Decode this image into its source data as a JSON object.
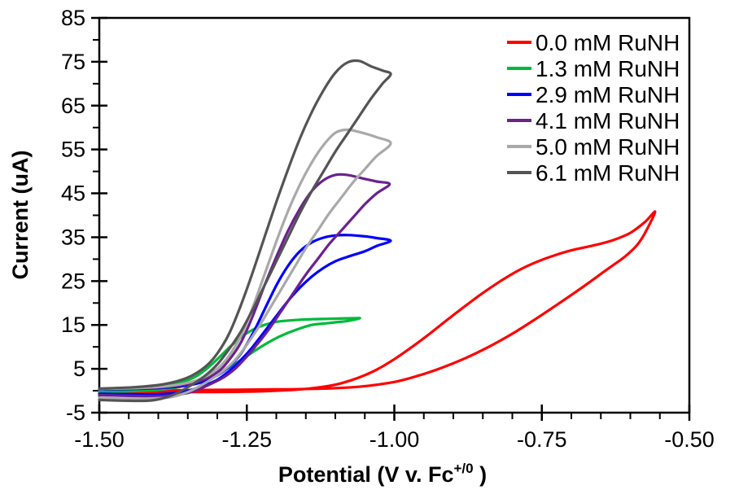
{
  "figure": {
    "background": "#FFFFFF",
    "axis_color": "#000000",
    "text_color": "#000000"
  },
  "chart_data": {
    "type": "line",
    "chart_kind": "cyclic-voltammogram",
    "title": "",
    "xlabel": {
      "main": "Potential (V v. Fc",
      "sup": "+/0",
      "end": " )"
    },
    "ylabel": "Current (uA)",
    "x_axis": {
      "min": -1.5,
      "max": -0.5,
      "minor_step": 0.05,
      "major_ticks": [
        {
          "value": -1.5,
          "label": "-1.50"
        },
        {
          "value": -1.25,
          "label": "-1.25"
        },
        {
          "value": -1.0,
          "label": "-1.00"
        },
        {
          "value": -0.75,
          "label": "-0.75"
        },
        {
          "value": -0.5,
          "label": "-0.50"
        }
      ]
    },
    "y_axis": {
      "min": -5,
      "max": 85,
      "minor_step": 5,
      "major_ticks": [
        {
          "value": 85,
          "label": "85"
        },
        {
          "value": 75,
          "label": "75"
        },
        {
          "value": 65,
          "label": "65"
        },
        {
          "value": 55,
          "label": "55"
        },
        {
          "value": 45,
          "label": "45"
        },
        {
          "value": 35,
          "label": "35"
        },
        {
          "value": 25,
          "label": "25"
        },
        {
          "value": 15,
          "label": "15"
        },
        {
          "value": 5,
          "label": "5"
        },
        {
          "value": -5,
          "label": "-5"
        }
      ]
    },
    "legend": {
      "position": "top-right-inside",
      "swatch": "line"
    },
    "grid": false,
    "series": [
      {
        "name": "0.0 mM RuNH",
        "color": "#FF0000",
        "forward": [
          [
            -1.5,
            0.1
          ],
          [
            -1.4,
            0.1
          ],
          [
            -1.3,
            0.2
          ],
          [
            -1.2,
            0.3
          ],
          [
            -1.12,
            0.5
          ],
          [
            -1.06,
            0.9
          ],
          [
            -1.0,
            2.0
          ],
          [
            -0.96,
            3.4
          ],
          [
            -0.92,
            5.2
          ],
          [
            -0.88,
            7.4
          ],
          [
            -0.84,
            10.0
          ],
          [
            -0.8,
            13.0
          ],
          [
            -0.76,
            16.4
          ],
          [
            -0.72,
            20.0
          ],
          [
            -0.68,
            23.7
          ],
          [
            -0.64,
            27.6
          ],
          [
            -0.61,
            30.5
          ],
          [
            -0.59,
            33.0
          ],
          [
            -0.575,
            36.0
          ],
          [
            -0.558,
            40.8
          ]
        ],
        "reverse": [
          [
            -0.558,
            40.8
          ],
          [
            -0.575,
            38.5
          ],
          [
            -0.6,
            36.0
          ],
          [
            -0.63,
            34.3
          ],
          [
            -0.66,
            33.2
          ],
          [
            -0.7,
            32.0
          ],
          [
            -0.73,
            30.8
          ],
          [
            -0.76,
            29.3
          ],
          [
            -0.79,
            27.4
          ],
          [
            -0.82,
            25.0
          ],
          [
            -0.85,
            22.3
          ],
          [
            -0.88,
            19.3
          ],
          [
            -0.91,
            16.2
          ],
          [
            -0.94,
            13.0
          ],
          [
            -0.97,
            10.0
          ],
          [
            -1.0,
            7.2
          ],
          [
            -1.03,
            4.8
          ],
          [
            -1.06,
            3.0
          ],
          [
            -1.09,
            1.7
          ],
          [
            -1.12,
            0.9
          ],
          [
            -1.16,
            0.3
          ],
          [
            -1.22,
            -0.1
          ],
          [
            -1.3,
            -0.3
          ],
          [
            -1.4,
            -0.3
          ],
          [
            -1.5,
            -0.3
          ]
        ]
      },
      {
        "name": "1.3 mM RuNH",
        "color": "#00B93C",
        "forward": [
          [
            -1.5,
            0.3
          ],
          [
            -1.44,
            0.5
          ],
          [
            -1.4,
            0.9
          ],
          [
            -1.37,
            1.6
          ],
          [
            -1.34,
            3.0
          ],
          [
            -1.32,
            4.8
          ],
          [
            -1.3,
            7.2
          ],
          [
            -1.28,
            9.8
          ],
          [
            -1.26,
            12.2
          ],
          [
            -1.24,
            13.9
          ],
          [
            -1.22,
            15.0
          ],
          [
            -1.2,
            15.7
          ],
          [
            -1.17,
            16.1
          ],
          [
            -1.14,
            16.3
          ],
          [
            -1.11,
            16.4
          ],
          [
            -1.08,
            16.5
          ],
          [
            -1.058,
            16.5
          ]
        ],
        "reverse": [
          [
            -1.058,
            16.5
          ],
          [
            -1.08,
            15.9
          ],
          [
            -1.1,
            15.6
          ],
          [
            -1.12,
            15.3
          ],
          [
            -1.14,
            15.0
          ],
          [
            -1.16,
            14.2
          ],
          [
            -1.18,
            13.2
          ],
          [
            -1.2,
            12.0
          ],
          [
            -1.22,
            10.5
          ],
          [
            -1.24,
            8.8
          ],
          [
            -1.26,
            7.0
          ],
          [
            -1.28,
            5.3
          ],
          [
            -1.3,
            3.8
          ],
          [
            -1.33,
            2.2
          ],
          [
            -1.36,
            1.0
          ],
          [
            -1.4,
            0.2
          ],
          [
            -1.45,
            -0.1
          ],
          [
            -1.5,
            -0.2
          ]
        ]
      },
      {
        "name": "2.9 mM RuNH",
        "color": "#0000FF",
        "forward": [
          [
            -1.5,
            0.3
          ],
          [
            -1.42,
            0.5
          ],
          [
            -1.37,
            0.9
          ],
          [
            -1.33,
            1.8
          ],
          [
            -1.3,
            3.5
          ],
          [
            -1.28,
            5.5
          ],
          [
            -1.26,
            8.5
          ],
          [
            -1.24,
            13.0
          ],
          [
            -1.22,
            18.5
          ],
          [
            -1.2,
            24.0
          ],
          [
            -1.18,
            28.5
          ],
          [
            -1.16,
            31.8
          ],
          [
            -1.14,
            33.8
          ],
          [
            -1.12,
            34.9
          ],
          [
            -1.1,
            35.4
          ],
          [
            -1.08,
            35.5
          ],
          [
            -1.05,
            35.2
          ],
          [
            -1.03,
            34.8
          ],
          [
            -1.006,
            34.2
          ]
        ],
        "reverse": [
          [
            -1.006,
            34.2
          ],
          [
            -1.03,
            33.0
          ],
          [
            -1.05,
            31.8
          ],
          [
            -1.08,
            30.5
          ],
          [
            -1.1,
            29.5
          ],
          [
            -1.12,
            28.0
          ],
          [
            -1.14,
            26.0
          ],
          [
            -1.16,
            23.5
          ],
          [
            -1.18,
            20.5
          ],
          [
            -1.2,
            17.0
          ],
          [
            -1.22,
            13.5
          ],
          [
            -1.24,
            10.0
          ],
          [
            -1.26,
            7.0
          ],
          [
            -1.28,
            4.5
          ],
          [
            -1.3,
            2.5
          ],
          [
            -1.33,
            0.8
          ],
          [
            -1.36,
            -0.3
          ],
          [
            -1.4,
            -0.8
          ],
          [
            -1.45,
            -0.8
          ],
          [
            -1.5,
            -0.7
          ]
        ]
      },
      {
        "name": "4.1 mM RuNH",
        "color": "#6B2190",
        "forward": [
          [
            -1.5,
            0.4
          ],
          [
            -1.42,
            0.6
          ],
          [
            -1.37,
            1.1
          ],
          [
            -1.33,
            2.2
          ],
          [
            -1.3,
            4.2
          ],
          [
            -1.28,
            7.0
          ],
          [
            -1.26,
            11.0
          ],
          [
            -1.24,
            17.0
          ],
          [
            -1.22,
            24.0
          ],
          [
            -1.2,
            30.5
          ],
          [
            -1.18,
            36.5
          ],
          [
            -1.16,
            41.5
          ],
          [
            -1.14,
            45.5
          ],
          [
            -1.12,
            48.0
          ],
          [
            -1.1,
            49.2
          ],
          [
            -1.08,
            49.2
          ],
          [
            -1.05,
            48.3
          ],
          [
            -1.03,
            47.7
          ],
          [
            -1.008,
            47.1
          ]
        ],
        "reverse": [
          [
            -1.008,
            47.1
          ],
          [
            -1.03,
            45.0
          ],
          [
            -1.05,
            42.5
          ],
          [
            -1.07,
            39.5
          ],
          [
            -1.09,
            36.5
          ],
          [
            -1.11,
            33.5
          ],
          [
            -1.13,
            30.0
          ],
          [
            -1.15,
            26.5
          ],
          [
            -1.17,
            22.5
          ],
          [
            -1.19,
            18.5
          ],
          [
            -1.21,
            14.5
          ],
          [
            -1.23,
            11.0
          ],
          [
            -1.25,
            7.8
          ],
          [
            -1.27,
            5.0
          ],
          [
            -1.29,
            3.0
          ],
          [
            -1.32,
            1.0
          ],
          [
            -1.35,
            -0.5
          ],
          [
            -1.39,
            -1.2
          ],
          [
            -1.44,
            -1.2
          ],
          [
            -1.5,
            -1.0
          ]
        ]
      },
      {
        "name": "5.0 mM RuNH",
        "color": "#A9A9A9",
        "forward": [
          [
            -1.5,
            0.4
          ],
          [
            -1.42,
            0.7
          ],
          [
            -1.37,
            1.3
          ],
          [
            -1.33,
            2.6
          ],
          [
            -1.3,
            5.0
          ],
          [
            -1.28,
            8.0
          ],
          [
            -1.26,
            12.5
          ],
          [
            -1.24,
            19.0
          ],
          [
            -1.22,
            26.5
          ],
          [
            -1.2,
            34.0
          ],
          [
            -1.18,
            41.0
          ],
          [
            -1.16,
            47.0
          ],
          [
            -1.14,
            52.0
          ],
          [
            -1.12,
            56.0
          ],
          [
            -1.1,
            58.8
          ],
          [
            -1.08,
            59.5
          ],
          [
            -1.06,
            59.0
          ],
          [
            -1.03,
            57.8
          ],
          [
            -1.006,
            56.4
          ]
        ],
        "reverse": [
          [
            -1.006,
            56.4
          ],
          [
            -1.03,
            53.5
          ],
          [
            -1.05,
            50.5
          ],
          [
            -1.07,
            47.5
          ],
          [
            -1.09,
            44.0
          ],
          [
            -1.11,
            40.5
          ],
          [
            -1.13,
            36.5
          ],
          [
            -1.15,
            32.5
          ],
          [
            -1.17,
            28.0
          ],
          [
            -1.19,
            23.5
          ],
          [
            -1.21,
            19.0
          ],
          [
            -1.23,
            14.5
          ],
          [
            -1.25,
            10.5
          ],
          [
            -1.27,
            7.0
          ],
          [
            -1.29,
            4.5
          ],
          [
            -1.32,
            1.8
          ],
          [
            -1.35,
            -0.3
          ],
          [
            -1.38,
            -1.5
          ],
          [
            -1.42,
            -1.8
          ],
          [
            -1.46,
            -1.8
          ],
          [
            -1.5,
            -1.6
          ]
        ]
      },
      {
        "name": "6.1 mM RuNH",
        "color": "#545454",
        "forward": [
          [
            -1.5,
            0.5
          ],
          [
            -1.44,
            0.8
          ],
          [
            -1.39,
            1.5
          ],
          [
            -1.35,
            3.0
          ],
          [
            -1.32,
            5.5
          ],
          [
            -1.3,
            8.5
          ],
          [
            -1.28,
            13.0
          ],
          [
            -1.26,
            19.5
          ],
          [
            -1.24,
            27.0
          ],
          [
            -1.22,
            35.0
          ],
          [
            -1.2,
            43.0
          ],
          [
            -1.18,
            50.5
          ],
          [
            -1.16,
            57.5
          ],
          [
            -1.14,
            63.5
          ],
          [
            -1.12,
            68.5
          ],
          [
            -1.1,
            72.5
          ],
          [
            -1.08,
            74.8
          ],
          [
            -1.06,
            75.2
          ],
          [
            -1.04,
            74.0
          ],
          [
            -1.02,
            73.0
          ],
          [
            -1.006,
            72.2
          ]
        ],
        "reverse": [
          [
            -1.006,
            72.2
          ],
          [
            -1.02,
            70.0
          ],
          [
            -1.04,
            66.5
          ],
          [
            -1.06,
            62.5
          ],
          [
            -1.08,
            58.5
          ],
          [
            -1.1,
            54.5
          ],
          [
            -1.12,
            50.0
          ],
          [
            -1.14,
            45.5
          ],
          [
            -1.16,
            40.5
          ],
          [
            -1.18,
            35.0
          ],
          [
            -1.2,
            29.5
          ],
          [
            -1.22,
            24.0
          ],
          [
            -1.24,
            18.5
          ],
          [
            -1.26,
            13.5
          ],
          [
            -1.28,
            9.5
          ],
          [
            -1.3,
            6.0
          ],
          [
            -1.32,
            3.5
          ],
          [
            -1.35,
            0.8
          ],
          [
            -1.38,
            -1.2
          ],
          [
            -1.41,
            -2.2
          ],
          [
            -1.45,
            -2.3
          ],
          [
            -1.5,
            -2.1
          ]
        ]
      }
    ]
  }
}
